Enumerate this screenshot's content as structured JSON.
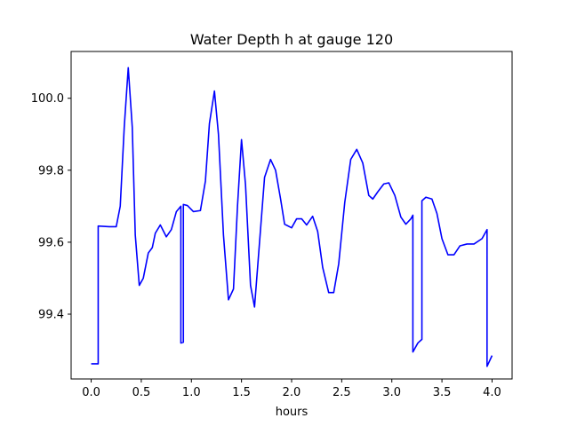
{
  "chart_data": {
    "type": "line",
    "title": "Water Depth h at gauge 120",
    "xlabel": "hours",
    "ylabel": "",
    "xlim": [
      -0.2,
      4.2
    ],
    "ylim": [
      99.22,
      100.13
    ],
    "x_ticks": [
      0.0,
      0.5,
      1.0,
      1.5,
      2.0,
      2.5,
      3.0,
      3.5,
      4.0
    ],
    "x_tick_labels": [
      "0.0",
      "0.5",
      "1.0",
      "1.5",
      "2.0",
      "2.5",
      "3.0",
      "3.5",
      "4.0"
    ],
    "y_ticks": [
      99.4,
      99.6,
      99.8,
      100.0
    ],
    "y_tick_labels": [
      "99.4",
      "99.6",
      "99.8",
      "100.0"
    ],
    "grid": false,
    "series": [
      {
        "color": "#0000ff",
        "points": [
          [
            0.0,
            99.262
          ],
          [
            0.07,
            99.262
          ],
          [
            0.07,
            99.645
          ],
          [
            0.18,
            99.643
          ],
          [
            0.25,
            99.643
          ],
          [
            0.29,
            99.7
          ],
          [
            0.33,
            99.92
          ],
          [
            0.37,
            100.085
          ],
          [
            0.41,
            99.92
          ],
          [
            0.44,
            99.62
          ],
          [
            0.48,
            99.48
          ],
          [
            0.52,
            99.5
          ],
          [
            0.57,
            99.57
          ],
          [
            0.61,
            99.585
          ],
          [
            0.64,
            99.625
          ],
          [
            0.69,
            99.648
          ],
          [
            0.75,
            99.615
          ],
          [
            0.8,
            99.635
          ],
          [
            0.85,
            99.685
          ],
          [
            0.895,
            99.7
          ],
          [
            0.895,
            99.32
          ],
          [
            0.92,
            99.322
          ],
          [
            0.92,
            99.705
          ],
          [
            0.96,
            99.702
          ],
          [
            1.02,
            99.685
          ],
          [
            1.09,
            99.688
          ],
          [
            1.14,
            99.77
          ],
          [
            1.18,
            99.93
          ],
          [
            1.23,
            100.02
          ],
          [
            1.27,
            99.9
          ],
          [
            1.32,
            99.62
          ],
          [
            1.37,
            99.44
          ],
          [
            1.42,
            99.47
          ],
          [
            1.46,
            99.7
          ],
          [
            1.5,
            99.885
          ],
          [
            1.54,
            99.76
          ],
          [
            1.59,
            99.48
          ],
          [
            1.63,
            99.42
          ],
          [
            1.68,
            99.6
          ],
          [
            1.73,
            99.78
          ],
          [
            1.79,
            99.83
          ],
          [
            1.84,
            99.8
          ],
          [
            1.89,
            99.72
          ],
          [
            1.93,
            99.65
          ],
          [
            2.0,
            99.64
          ],
          [
            2.05,
            99.665
          ],
          [
            2.1,
            99.665
          ],
          [
            2.15,
            99.648
          ],
          [
            2.21,
            99.672
          ],
          [
            2.26,
            99.63
          ],
          [
            2.31,
            99.53
          ],
          [
            2.37,
            99.46
          ],
          [
            2.42,
            99.46
          ],
          [
            2.47,
            99.54
          ],
          [
            2.53,
            99.71
          ],
          [
            2.59,
            99.83
          ],
          [
            2.65,
            99.858
          ],
          [
            2.71,
            99.82
          ],
          [
            2.77,
            99.73
          ],
          [
            2.81,
            99.72
          ],
          [
            2.86,
            99.74
          ],
          [
            2.92,
            99.762
          ],
          [
            2.97,
            99.765
          ],
          [
            3.03,
            99.73
          ],
          [
            3.09,
            99.67
          ],
          [
            3.14,
            99.65
          ],
          [
            3.19,
            99.665
          ],
          [
            3.21,
            99.675
          ],
          [
            3.21,
            99.295
          ],
          [
            3.26,
            99.32
          ],
          [
            3.3,
            99.33
          ],
          [
            3.3,
            99.715
          ],
          [
            3.34,
            99.725
          ],
          [
            3.4,
            99.72
          ],
          [
            3.45,
            99.68
          ],
          [
            3.5,
            99.61
          ],
          [
            3.56,
            99.565
          ],
          [
            3.62,
            99.565
          ],
          [
            3.68,
            99.59
          ],
          [
            3.75,
            99.595
          ],
          [
            3.82,
            99.595
          ],
          [
            3.9,
            99.61
          ],
          [
            3.95,
            99.635
          ],
          [
            3.95,
            99.255
          ],
          [
            4.0,
            99.285
          ]
        ]
      }
    ]
  }
}
